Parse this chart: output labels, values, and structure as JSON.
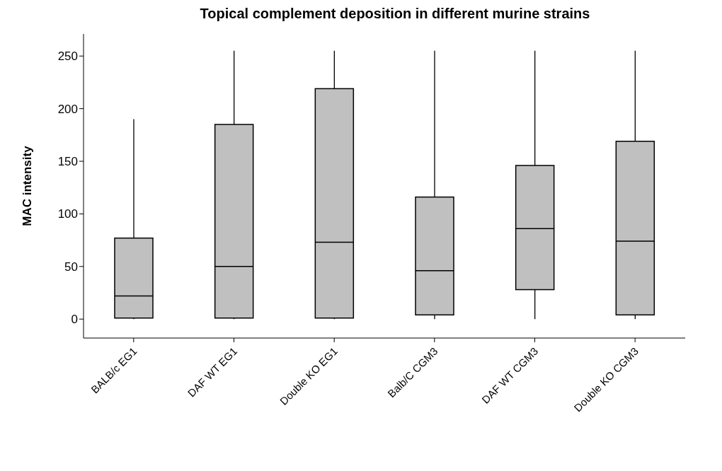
{
  "chart_data": {
    "type": "box",
    "title": "Topical complement deposition in different murine strains",
    "ylabel": "MAC intensity",
    "categories": [
      "BALB/c EG1",
      "DAF WT EG1",
      "Double KO EG1",
      "Balb/C CGM3",
      "DAF WT CGM3",
      "Double KO CGM3"
    ],
    "color": "#c0c0c0",
    "boxes": [
      {
        "low": 0,
        "q1": 1,
        "median": 22,
        "q3": 77,
        "high": 190
      },
      {
        "low": 0,
        "q1": 1,
        "median": 50,
        "q3": 185,
        "high": 255
      },
      {
        "low": 0,
        "q1": 1,
        "median": 73,
        "q3": 219,
        "high": 255
      },
      {
        "low": 0,
        "q1": 4,
        "median": 46,
        "q3": 116,
        "high": 255
      },
      {
        "low": 0,
        "q1": 28,
        "median": 86,
        "q3": 146,
        "high": 255
      },
      {
        "low": 0,
        "q1": 4,
        "median": 74,
        "q3": 169,
        "high": 255
      }
    ],
    "ylim": [
      -18,
      271
    ],
    "yticks": [
      0,
      50,
      100,
      150,
      200,
      250
    ]
  }
}
